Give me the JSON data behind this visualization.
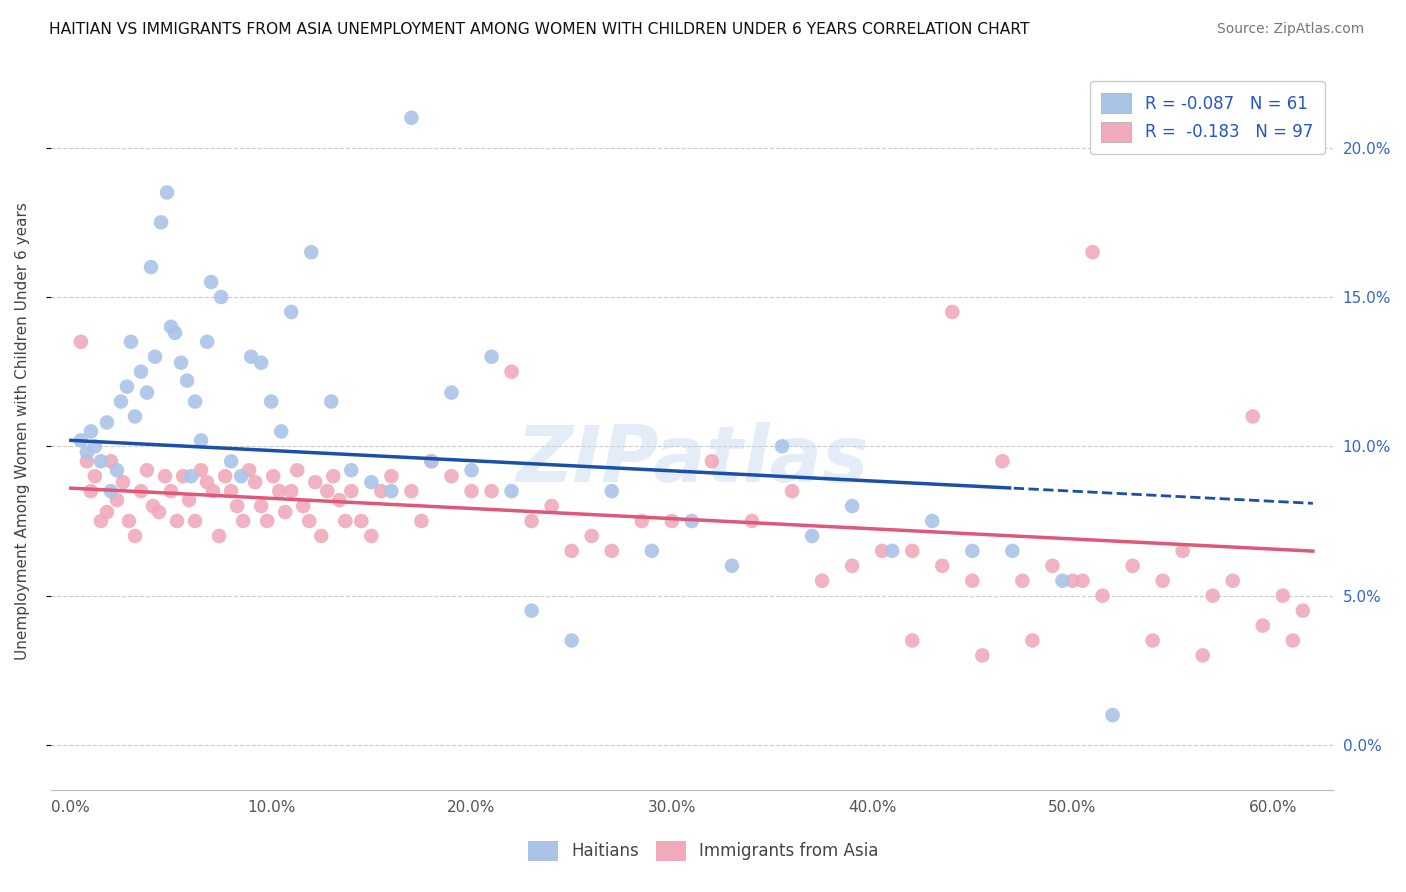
{
  "title": "HAITIAN VS IMMIGRANTS FROM ASIA UNEMPLOYMENT AMONG WOMEN WITH CHILDREN UNDER 6 YEARS CORRELATION CHART",
  "source": "Source: ZipAtlas.com",
  "ylabel": "Unemployment Among Women with Children Under 6 years",
  "xlabel_vals": [
    0,
    10,
    20,
    30,
    40,
    50,
    60
  ],
  "ylabel_vals": [
    0,
    5,
    10,
    15,
    20
  ],
  "xlim": [
    -1,
    63
  ],
  "ylim": [
    -1.5,
    22.5
  ],
  "legend_labels": [
    "Haitians",
    "Immigrants from Asia"
  ],
  "watermark": "ZIPatlas",
  "blue_line_color": "#1a4faa",
  "pink_line_color": "#e05878",
  "blue_dot_color": "#aac4e8",
  "pink_dot_color": "#f0aabb",
  "blue_intercept": 10.2,
  "blue_slope": -0.034,
  "pink_intercept": 8.6,
  "pink_slope": -0.034,
  "blue_dash_start": 47,
  "haitians_x": [
    0.5,
    0.8,
    1.0,
    1.2,
    1.5,
    1.8,
    2.0,
    2.3,
    2.5,
    2.8,
    3.0,
    3.2,
    3.5,
    3.8,
    4.0,
    4.2,
    4.5,
    4.8,
    5.0,
    5.2,
    5.5,
    5.8,
    6.0,
    6.2,
    6.5,
    6.8,
    7.0,
    7.5,
    8.0,
    8.5,
    9.0,
    9.5,
    10.0,
    10.5,
    11.0,
    12.0,
    13.0,
    14.0,
    15.0,
    16.0,
    17.0,
    18.0,
    19.0,
    20.0,
    21.0,
    22.0,
    23.0,
    25.0,
    27.0,
    29.0,
    31.0,
    33.0,
    35.5,
    37.0,
    39.0,
    41.0,
    43.0,
    45.0,
    47.0,
    49.5,
    52.0
  ],
  "haitians_y": [
    10.2,
    9.8,
    10.5,
    10.0,
    9.5,
    10.8,
    8.5,
    9.2,
    11.5,
    12.0,
    13.5,
    11.0,
    12.5,
    11.8,
    16.0,
    13.0,
    17.5,
    18.5,
    14.0,
    13.8,
    12.8,
    12.2,
    9.0,
    11.5,
    10.2,
    13.5,
    15.5,
    15.0,
    9.5,
    9.0,
    13.0,
    12.8,
    11.5,
    10.5,
    14.5,
    16.5,
    11.5,
    9.2,
    8.8,
    8.5,
    21.0,
    9.5,
    11.8,
    9.2,
    13.0,
    8.5,
    4.5,
    3.5,
    8.5,
    6.5,
    7.5,
    6.0,
    10.0,
    7.0,
    8.0,
    6.5,
    7.5,
    6.5,
    6.5,
    5.5,
    1.0
  ],
  "asia_x": [
    0.5,
    0.8,
    1.0,
    1.2,
    1.5,
    1.8,
    2.0,
    2.3,
    2.6,
    2.9,
    3.2,
    3.5,
    3.8,
    4.1,
    4.4,
    4.7,
    5.0,
    5.3,
    5.6,
    5.9,
    6.2,
    6.5,
    6.8,
    7.1,
    7.4,
    7.7,
    8.0,
    8.3,
    8.6,
    8.9,
    9.2,
    9.5,
    9.8,
    10.1,
    10.4,
    10.7,
    11.0,
    11.3,
    11.6,
    11.9,
    12.2,
    12.5,
    12.8,
    13.1,
    13.4,
    13.7,
    14.0,
    14.5,
    15.0,
    15.5,
    16.0,
    17.0,
    17.5,
    18.0,
    19.0,
    20.0,
    21.0,
    22.0,
    23.0,
    24.0,
    25.0,
    26.0,
    27.0,
    28.5,
    30.0,
    32.0,
    34.0,
    36.0,
    37.5,
    39.0,
    40.5,
    42.0,
    43.5,
    45.0,
    46.5,
    47.5,
    49.0,
    50.5,
    51.5,
    53.0,
    54.5,
    55.5,
    57.0,
    58.0,
    59.0,
    60.5,
    61.5,
    42.0,
    45.5,
    48.0,
    51.0,
    54.0,
    56.5,
    59.5,
    61.0,
    44.0,
    50.0
  ],
  "asia_y": [
    13.5,
    9.5,
    8.5,
    9.0,
    7.5,
    7.8,
    9.5,
    8.2,
    8.8,
    7.5,
    7.0,
    8.5,
    9.2,
    8.0,
    7.8,
    9.0,
    8.5,
    7.5,
    9.0,
    8.2,
    7.5,
    9.2,
    8.8,
    8.5,
    7.0,
    9.0,
    8.5,
    8.0,
    7.5,
    9.2,
    8.8,
    8.0,
    7.5,
    9.0,
    8.5,
    7.8,
    8.5,
    9.2,
    8.0,
    7.5,
    8.8,
    7.0,
    8.5,
    9.0,
    8.2,
    7.5,
    8.5,
    7.5,
    7.0,
    8.5,
    9.0,
    8.5,
    7.5,
    9.5,
    9.0,
    8.5,
    8.5,
    12.5,
    7.5,
    8.0,
    6.5,
    7.0,
    6.5,
    7.5,
    7.5,
    9.5,
    7.5,
    8.5,
    5.5,
    6.0,
    6.5,
    6.5,
    6.0,
    5.5,
    9.5,
    5.5,
    6.0,
    5.5,
    5.0,
    6.0,
    5.5,
    6.5,
    5.0,
    5.5,
    11.0,
    5.0,
    4.5,
    3.5,
    3.0,
    3.5,
    16.5,
    3.5,
    3.0,
    4.0,
    3.5,
    14.5,
    5.5
  ]
}
